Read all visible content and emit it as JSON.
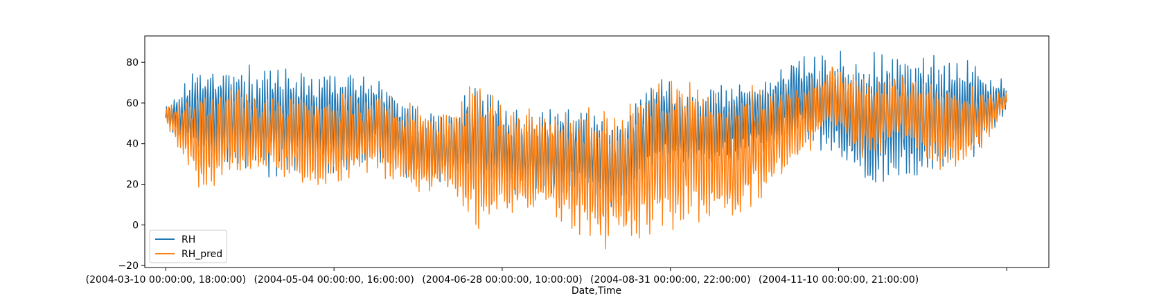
{
  "chart_data": {
    "type": "line",
    "title": "",
    "xlabel": "Date,Time",
    "ylabel": "",
    "x_tick_labels": [
      "(2004-03-10 00:00:00, 18:00:00)",
      "(2004-05-04 00:00:00, 16:00:00)",
      "(2004-06-28 00:00:00, 10:00:00)",
      "(2004-08-31 00:00:00, 22:00:00)",
      "(2004-11-10 00:00:00, 21:00:00)",
      ""
    ],
    "y_ticks": [
      -20,
      0,
      20,
      40,
      60,
      80
    ],
    "ylim": [
      -21,
      93
    ],
    "x_index_range": [
      0,
      10
    ],
    "xlim": [
      -0.25,
      10.5
    ],
    "grid": false,
    "legend_position": "lower-left",
    "series": [
      {
        "name": "RH",
        "color": "#1f77b4",
        "envelope": [
          {
            "x": 0.0,
            "low": 48,
            "high": 60
          },
          {
            "x": 0.5,
            "low": 28,
            "high": 80
          },
          {
            "x": 1.0,
            "low": 24,
            "high": 81
          },
          {
            "x": 1.5,
            "low": 22,
            "high": 80
          },
          {
            "x": 2.0,
            "low": 26,
            "high": 76
          },
          {
            "x": 2.5,
            "low": 20,
            "high": 80
          },
          {
            "x": 3.0,
            "low": 30,
            "high": 76
          },
          {
            "x": 3.5,
            "low": 20,
            "high": 60
          },
          {
            "x": 4.0,
            "low": 16,
            "high": 56
          },
          {
            "x": 4.5,
            "low": 14,
            "high": 74
          },
          {
            "x": 5.0,
            "low": 12,
            "high": 58
          },
          {
            "x": 5.5,
            "low": 10,
            "high": 58
          },
          {
            "x": 6.0,
            "low": 14,
            "high": 58
          },
          {
            "x": 6.5,
            "low": 2,
            "high": 56
          },
          {
            "x": 7.0,
            "low": 30,
            "high": 76
          },
          {
            "x": 7.5,
            "low": 26,
            "high": 64
          },
          {
            "x": 8.0,
            "low": 30,
            "high": 70
          },
          {
            "x": 8.5,
            "low": 34,
            "high": 74
          },
          {
            "x": 9.0,
            "low": 42,
            "high": 84
          },
          {
            "x": 9.5,
            "low": 32,
            "high": 86
          },
          {
            "x": 10.0,
            "low": 14,
            "high": 86
          },
          {
            "x": 10.5,
            "low": 22,
            "high": 88
          },
          {
            "x": 11.0,
            "low": 20,
            "high": 84
          },
          {
            "x": 11.5,
            "low": 28,
            "high": 82
          },
          {
            "x": 12.0,
            "low": 56,
            "high": 70
          }
        ]
      },
      {
        "name": "RH_pred",
        "color": "#ff7f0e",
        "envelope": [
          {
            "x": 0.0,
            "low": 50,
            "high": 58
          },
          {
            "x": 0.5,
            "low": 14,
            "high": 66
          },
          {
            "x": 1.0,
            "low": 26,
            "high": 68
          },
          {
            "x": 1.5,
            "low": 22,
            "high": 66
          },
          {
            "x": 2.0,
            "low": 16,
            "high": 68
          },
          {
            "x": 2.5,
            "low": 18,
            "high": 66
          },
          {
            "x": 3.0,
            "low": 24,
            "high": 68
          },
          {
            "x": 3.5,
            "low": 16,
            "high": 60
          },
          {
            "x": 4.0,
            "low": 14,
            "high": 56
          },
          {
            "x": 4.5,
            "low": -5,
            "high": 74
          },
          {
            "x": 5.0,
            "low": 4,
            "high": 58
          },
          {
            "x": 5.5,
            "low": 2,
            "high": 58
          },
          {
            "x": 6.0,
            "low": -8,
            "high": 58
          },
          {
            "x": 6.5,
            "low": -15,
            "high": 58
          },
          {
            "x": 7.0,
            "low": -8,
            "high": 76
          },
          {
            "x": 7.5,
            "low": 0,
            "high": 74
          },
          {
            "x": 8.0,
            "low": -2,
            "high": 62
          },
          {
            "x": 8.5,
            "low": 10,
            "high": 72
          },
          {
            "x": 9.0,
            "low": 28,
            "high": 70
          },
          {
            "x": 9.5,
            "low": 46,
            "high": 82
          },
          {
            "x": 10.0,
            "low": 30,
            "high": 72
          },
          {
            "x": 10.5,
            "low": 42,
            "high": 74
          },
          {
            "x": 11.0,
            "low": 24,
            "high": 70
          },
          {
            "x": 11.5,
            "low": 30,
            "high": 68
          },
          {
            "x": 12.0,
            "low": 56,
            "high": 66
          }
        ]
      }
    ]
  }
}
